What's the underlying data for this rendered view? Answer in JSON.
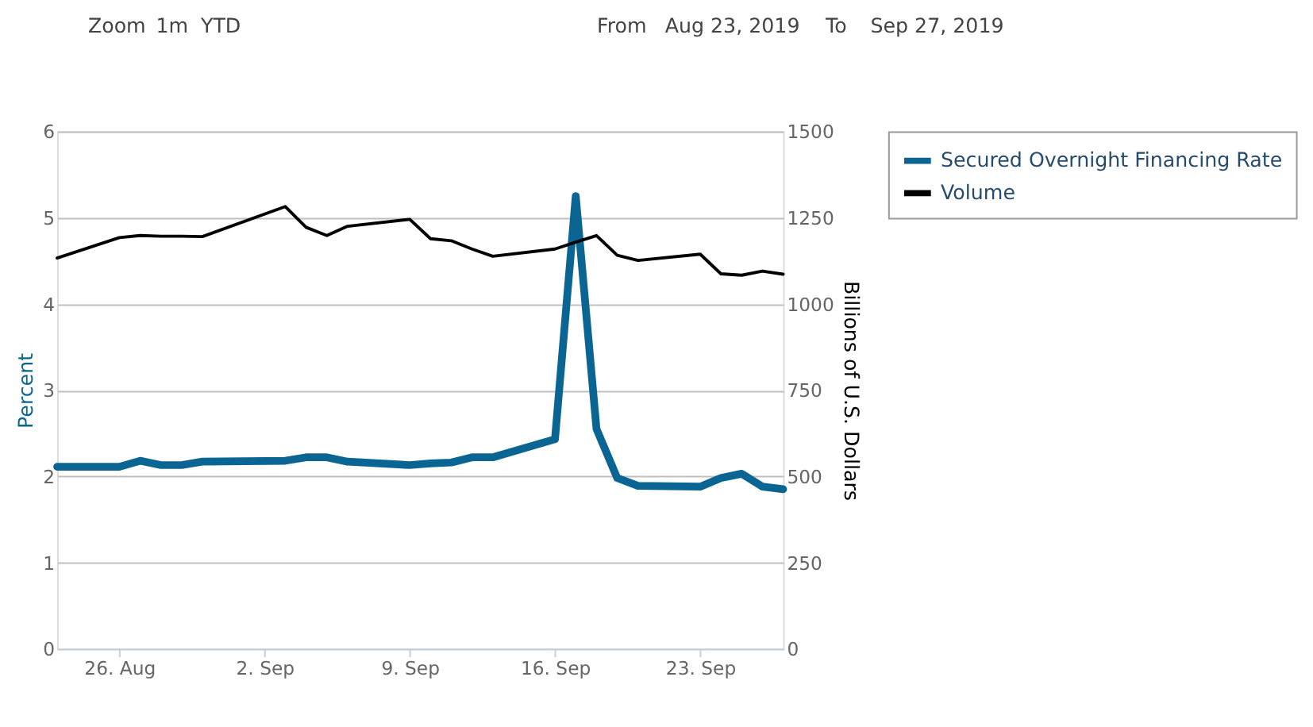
{
  "chart_data": {
    "type": "line",
    "ylabel": "Percent",
    "y2label": "Billions of U.S. Dollars",
    "annotations": [
      "Zoom",
      "1m",
      "YTD",
      "From",
      "Aug 23, 2019",
      "To",
      "Sep 27, 2019"
    ],
    "x": [
      "2019-08-23",
      "2019-08-26",
      "2019-08-27",
      "2019-08-28",
      "2019-08-29",
      "2019-08-30",
      "2019-09-03",
      "2019-09-04",
      "2019-09-05",
      "2019-09-06",
      "2019-09-09",
      "2019-09-10",
      "2019-09-11",
      "2019-09-12",
      "2019-09-13",
      "2019-09-16",
      "2019-09-17",
      "2019-09-18",
      "2019-09-19",
      "2019-09-20",
      "2019-09-23",
      "2019-09-24",
      "2019-09-25",
      "2019-09-26",
      "2019-09-27"
    ],
    "series": [
      {
        "name": "Secured Overnight Financing Rate",
        "color": "#0b6593",
        "values": [
          2.11,
          2.11,
          2.18,
          2.13,
          2.13,
          2.17,
          2.18,
          2.22,
          2.22,
          2.17,
          2.13,
          2.15,
          2.16,
          2.22,
          2.22,
          2.43,
          5.25,
          2.55,
          1.98,
          1.89,
          1.88,
          1.98,
          2.03,
          1.88,
          1.85
        ]
      },
      {
        "name": "Volume",
        "color": "#000000",
        "axis": "y2",
        "values": [
          1133,
          1192,
          1198,
          1196,
          1196,
          1195,
          1282,
          1222,
          1198,
          1225,
          1245,
          1189,
          1183,
          1159,
          1138,
          1159,
          1179,
          1198,
          1141,
          1126,
          1144,
          1087,
          1083,
          1095,
          1086
        ]
      }
    ],
    "xlim": [
      "2019-08-23",
      "2019-09-27"
    ],
    "xticks": [
      {
        "value": "2019-08-26",
        "label": "26. Aug"
      },
      {
        "value": "2019-09-02",
        "label": "2. Sep"
      },
      {
        "value": "2019-09-09",
        "label": "9. Sep"
      },
      {
        "value": "2019-09-16",
        "label": "16. Sep"
      },
      {
        "value": "2019-09-23",
        "label": "23. Sep"
      }
    ],
    "ylim": [
      0,
      6
    ],
    "yticks": [
      0,
      1,
      2,
      3,
      4,
      5,
      6
    ],
    "y2lim": [
      0,
      1500
    ],
    "y2ticks": [
      0,
      250,
      500,
      750,
      1000,
      1250,
      1500
    ],
    "grid": "y",
    "legend": "top right",
    "marker": "none",
    "line_style": "solid"
  }
}
